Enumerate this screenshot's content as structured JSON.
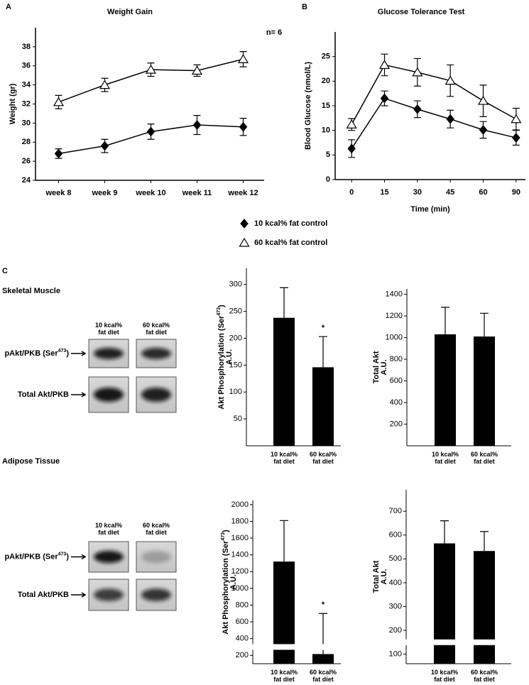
{
  "chart_data": [
    {
      "type": "line",
      "panel": "A",
      "title": "Weight Gain",
      "annotation": "n= 6",
      "ylabel": "Weight (gr)",
      "categories": [
        "week 8",
        "week 9",
        "week 10",
        "week 11",
        "week 12"
      ],
      "series": [
        {
          "color": "#000000",
          "marker": "diamond",
          "values": [
            26.8,
            27.6,
            29.1,
            29.8,
            29.6
          ],
          "errors": [
            0.5,
            0.7,
            0.8,
            1.0,
            0.9
          ]
        },
        {
          "color": "#000000",
          "marker": "triangle-open",
          "values": [
            32.2,
            34.0,
            35.6,
            35.5,
            36.7
          ],
          "errors": [
            0.7,
            0.7,
            0.7,
            0.6,
            0.8
          ]
        }
      ],
      "ylim": [
        24,
        40
      ],
      "yticks": [
        24,
        26,
        28,
        30,
        32,
        34,
        36,
        38
      ]
    },
    {
      "type": "line",
      "panel": "B",
      "title": "Glucose Tolerance Test",
      "xlabel": "Time (min)",
      "ylabel": "Blood Glucose (nmol/L)",
      "categories": [
        "0",
        "15",
        "30",
        "45",
        "60",
        "90"
      ],
      "series": [
        {
          "color": "#000000",
          "marker": "diamond",
          "values": [
            6.3,
            16.5,
            14.3,
            12.3,
            10.1,
            8.5
          ],
          "errors": [
            1.8,
            1.5,
            1.7,
            1.8,
            1.7,
            1.5
          ]
        },
        {
          "color": "#000000",
          "marker": "triangle-open",
          "values": [
            11.2,
            23.3,
            21.8,
            20.1,
            16.0,
            12.3
          ],
          "errors": [
            1.2,
            2.2,
            2.8,
            3.2,
            3.2,
            2.2
          ]
        }
      ],
      "ylim": [
        0,
        30
      ],
      "yticks": [
        0,
        5,
        10,
        15,
        20,
        25
      ]
    },
    {
      "type": "bar",
      "ylabel": {
        "text": "Akt Phosphorylation (Ser",
        "sup": "473",
        "tail": ")",
        "line2": "A.U."
      },
      "categories": [
        "10 kcal% fat diet",
        "60 kcal% fat diet"
      ],
      "values": [
        238,
        146
      ],
      "errors": [
        56,
        57
      ],
      "color": "#000000",
      "annotations": [
        {
          "text": "*",
          "category": "60 kcal% fat diet"
        }
      ],
      "ylim": [
        0,
        330
      ],
      "yticks": [
        50,
        100,
        150,
        200,
        250,
        300
      ]
    },
    {
      "type": "bar",
      "ylabel": {
        "text": "Total Akt",
        "line2": "A.U."
      },
      "categories": [
        "10 kcal% fat diet",
        "60 kcal% fat diet"
      ],
      "values": [
        1030,
        1010
      ],
      "errors": [
        250,
        215
      ],
      "color": "#000000",
      "ylim": [
        0,
        1450
      ],
      "yticks": [
        200,
        400,
        600,
        800,
        1000,
        1200,
        1400
      ]
    },
    {
      "type": "bar",
      "ylabel": {
        "text": "Akt Phosphorylation (Ser",
        "sup": "473",
        "tail": ")",
        "line2": "A.U."
      },
      "categories": [
        "10 kcal% fat diet",
        "60 kcal% fat diet"
      ],
      "values": [
        1320,
        215
      ],
      "errors": [
        490,
        485
      ],
      "color": "#000000",
      "annotations": [
        {
          "text": "*",
          "category": "60 kcal% fat diet"
        }
      ],
      "axis_break": true,
      "ylim": [
        100,
        2050
      ],
      "yticks": [
        200,
        400,
        600,
        800,
        1000,
        1200,
        1400,
        1600,
        1800,
        2000
      ]
    },
    {
      "type": "bar",
      "ylabel": {
        "text": "Total Akt",
        "line2": "A.U."
      },
      "categories": [
        "10 kcal% fat diet",
        "60 kcal% fat diet"
      ],
      "values": [
        565,
        533
      ],
      "errors": [
        95,
        82
      ],
      "color": "#000000",
      "axis_break": true,
      "ylim": [
        60,
        790
      ],
      "yticks": [
        100,
        200,
        300,
        400,
        500,
        600,
        700
      ]
    }
  ],
  "legend": [
    {
      "label": "10 kcal% fat control"
    },
    {
      "label": "60 kcal% fat control"
    }
  ],
  "panel_c": {
    "label": "C",
    "sections": [
      {
        "title": "Skeletal Muscle",
        "lanes": [
          "10 kcal% fat diet",
          "60 kcal% fat diet"
        ],
        "rows": [
          {
            "text": "pAkt/PKB (Ser",
            "sup": "473",
            "tail": ")"
          },
          {
            "text": "Total Akt/PKB"
          }
        ]
      },
      {
        "title": "Adipose Tissue",
        "lanes": [
          "10 kcal% fat diet",
          "60 kcal% fat diet"
        ],
        "rows": [
          {
            "text": "pAkt/PKB (Ser",
            "sup": "473",
            "tail": ")"
          },
          {
            "text": "Total Akt/PKB"
          }
        ]
      }
    ]
  }
}
